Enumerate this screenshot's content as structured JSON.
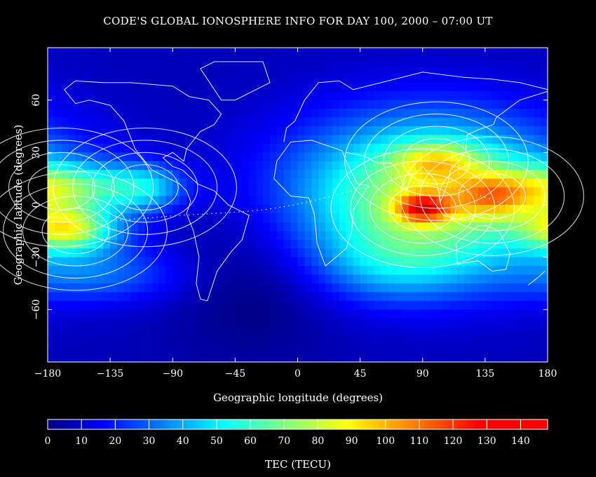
{
  "chart_data": {
    "type": "heatmap",
    "title": "CODE'S GLOBAL IONOSPHERE INFO FOR DAY 100, 2000 – 07:00 UT",
    "xlabel": "Geographic longitude (degrees)",
    "ylabel": "Geographic latitude (degrees)",
    "xlim": [
      -180,
      180
    ],
    "ylim": [
      -90,
      90
    ],
    "x_ticks": [
      -180,
      -135,
      -90,
      -45,
      0,
      45,
      90,
      135,
      180
    ],
    "y_ticks": [
      -60,
      -30,
      0,
      30,
      60
    ],
    "colorbar": {
      "label": "TEC (TECU)",
      "range": [
        0,
        148
      ],
      "ticks": [
        0,
        10,
        20,
        30,
        40,
        50,
        60,
        70,
        80,
        90,
        100,
        110,
        120,
        130,
        140
      ],
      "colormap": "jet"
    },
    "features": {
      "contours": "white",
      "coastlines": "white",
      "magnetic_equator": "white-dotted"
    },
    "tec_maxima": [
      {
        "lon": 90,
        "lat": -2,
        "tec": 140
      },
      {
        "lon": 140,
        "lat": 5,
        "tec": 128
      },
      {
        "lon": 100,
        "lat": 25,
        "tec": 112
      },
      {
        "lon": -160,
        "lat": -15,
        "tec": 108
      },
      {
        "lon": -170,
        "lat": 10,
        "tec": 80
      },
      {
        "lon": -110,
        "lat": 10,
        "tec": 75
      }
    ]
  }
}
